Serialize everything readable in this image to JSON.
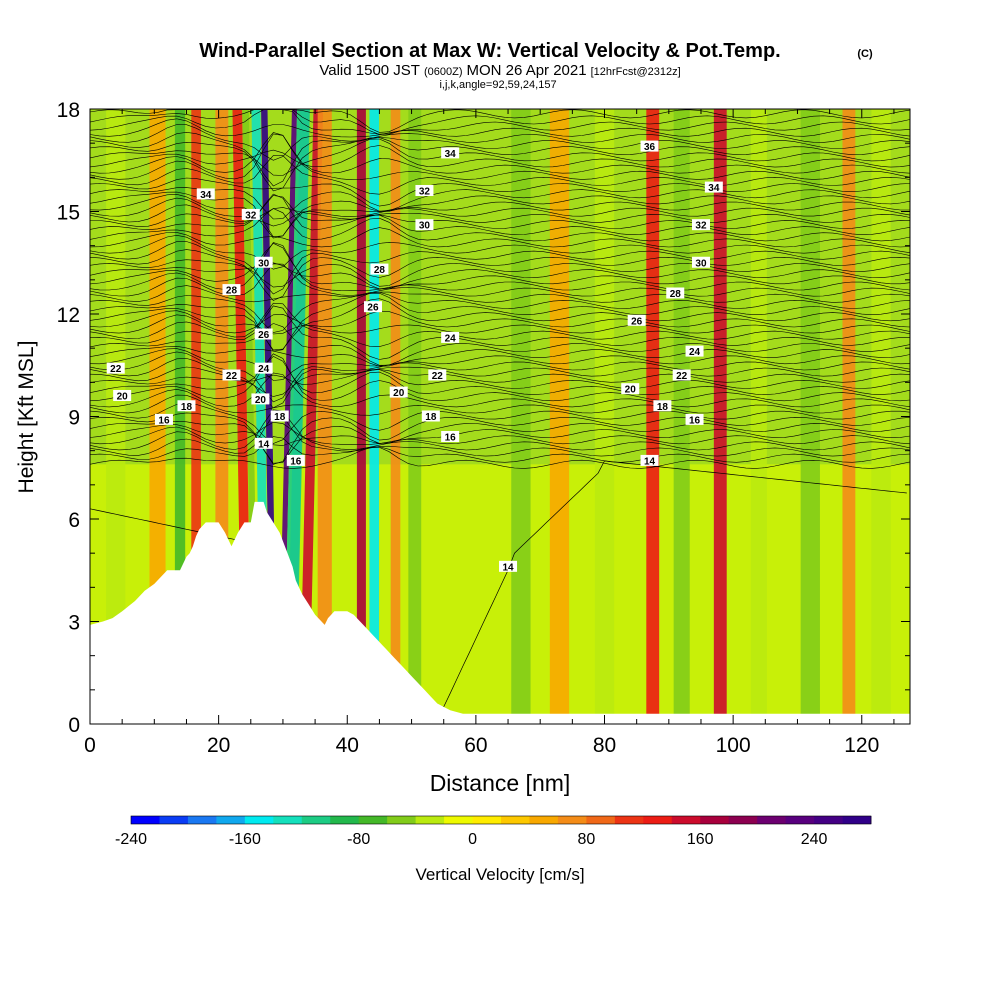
{
  "header": {
    "title_main": "Wind-Parallel Section at Max W: Vertical Velocity & Pot.Temp.",
    "title_c": "(C)",
    "subtitle_a": "Valid 1500 JST",
    "subtitle_b": "(0600Z)",
    "subtitle_c": "MON 26 Apr 2021",
    "subtitle_d": "[12hrFcst@2312z]",
    "subtitle_2": "i,j,k,angle=92,59,24,157"
  },
  "chart_data": {
    "type": "heatmap",
    "title": "Wind-Parallel Section at Max W: Vertical Velocity & Pot.Temp.",
    "xlabel": "Distance [nm]",
    "ylabel": "Height [Kft MSL]",
    "xlim": [
      0,
      127.5
    ],
    "ylim": [
      0,
      18
    ],
    "x_ticks": [
      0,
      20,
      40,
      60,
      80,
      100,
      120
    ],
    "y_ticks": [
      0,
      3,
      6,
      9,
      12,
      15,
      18
    ],
    "colorbar": {
      "label": "Vertical Velocity [cm/s]",
      "min": -240,
      "max": 280,
      "step": 20,
      "tick_values": [
        -240,
        -160,
        -80,
        0,
        80,
        160,
        240
      ],
      "colors": [
        "#0000ff",
        "#0a3cf5",
        "#1a78f2",
        "#10a8ee",
        "#00eaf0",
        "#14e0bc",
        "#1ccc84",
        "#22b84c",
        "#44b828",
        "#82cc1a",
        "#baea10",
        "#eefa00",
        "#ffec00",
        "#fdc800",
        "#f8a800",
        "#f48c18",
        "#f06818",
        "#ec3414",
        "#ec1c14",
        "#cc0c2c",
        "#a8003c",
        "#8c0050",
        "#6c0070",
        "#58007e",
        "#440084",
        "#300088"
      ]
    },
    "series": [
      {
        "field": "theta_contours",
        "labels": [
          {
            "x": 18,
            "y": 15.5,
            "v": "34"
          },
          {
            "x": 25,
            "y": 14.9,
            "v": "32"
          },
          {
            "x": 27,
            "y": 13.5,
            "v": "30"
          },
          {
            "x": 22,
            "y": 12.7,
            "v": "28"
          },
          {
            "x": 27,
            "y": 11.4,
            "v": "26"
          },
          {
            "x": 27,
            "y": 10.4,
            "v": "24"
          },
          {
            "x": 22,
            "y": 10.2,
            "v": "22"
          },
          {
            "x": 26.5,
            "y": 9.5,
            "v": "20"
          },
          {
            "x": 4,
            "y": 10.4,
            "v": "22"
          },
          {
            "x": 5,
            "y": 9.6,
            "v": "20"
          },
          {
            "x": 15,
            "y": 9.3,
            "v": "18"
          },
          {
            "x": 11.5,
            "y": 8.9,
            "v": "16"
          },
          {
            "x": 29.5,
            "y": 9.0,
            "v": "18"
          },
          {
            "x": 27,
            "y": 8.2,
            "v": "14"
          },
          {
            "x": 32,
            "y": 7.7,
            "v": "16"
          },
          {
            "x": 56,
            "y": 16.7,
            "v": "34"
          },
          {
            "x": 52,
            "y": 15.6,
            "v": "32"
          },
          {
            "x": 52,
            "y": 14.6,
            "v": "30"
          },
          {
            "x": 45,
            "y": 13.3,
            "v": "28"
          },
          {
            "x": 44,
            "y": 12.2,
            "v": "26"
          },
          {
            "x": 56,
            "y": 11.3,
            "v": "24"
          },
          {
            "x": 54,
            "y": 10.2,
            "v": "22"
          },
          {
            "x": 48,
            "y": 9.7,
            "v": "20"
          },
          {
            "x": 53,
            "y": 9.0,
            "v": "18"
          },
          {
            "x": 56,
            "y": 8.4,
            "v": "16"
          },
          {
            "x": 87,
            "y": 16.9,
            "v": "36"
          },
          {
            "x": 97,
            "y": 15.7,
            "v": "34"
          },
          {
            "x": 95,
            "y": 14.6,
            "v": "32"
          },
          {
            "x": 95,
            "y": 13.5,
            "v": "30"
          },
          {
            "x": 91,
            "y": 12.6,
            "v": "28"
          },
          {
            "x": 85,
            "y": 11.8,
            "v": "26"
          },
          {
            "x": 94,
            "y": 10.9,
            "v": "24"
          },
          {
            "x": 92,
            "y": 10.2,
            "v": "22"
          },
          {
            "x": 84,
            "y": 9.8,
            "v": "20"
          },
          {
            "x": 89,
            "y": 9.3,
            "v": "18"
          },
          {
            "x": 94,
            "y": 8.9,
            "v": "16"
          },
          {
            "x": 87,
            "y": 7.7,
            "v": "14"
          },
          {
            "x": 65,
            "y": 4.6,
            "v": "14"
          }
        ]
      },
      {
        "field": "vertical_velocity_bands_cm_s",
        "bands": [
          {
            "x": 28.6,
            "w": 1.0,
            "v": 280
          },
          {
            "x": 29.6,
            "w": 0.8,
            "v": 220
          },
          {
            "x": 27.3,
            "w": 1.4,
            "v": -140
          },
          {
            "x": 31.2,
            "w": 1.4,
            "v": -180
          },
          {
            "x": 31.0,
            "w": 2.0,
            "v": -120
          },
          {
            "x": 25.7,
            "w": 1.0,
            "v": -60
          },
          {
            "x": 33.3,
            "w": 1.5,
            "v": 140
          },
          {
            "x": 36.5,
            "w": 2.2,
            "v": 60
          },
          {
            "x": 24.4,
            "w": 1.5,
            "v": 120
          },
          {
            "x": 20.5,
            "w": 2.0,
            "v": 60
          },
          {
            "x": 42.2,
            "w": 1.4,
            "v": 160
          },
          {
            "x": 44.2,
            "w": 1.5,
            "v": -160
          },
          {
            "x": 47.5,
            "w": 1.5,
            "v": 60
          },
          {
            "x": 50.5,
            "w": 2.0,
            "v": -60
          },
          {
            "x": 14.0,
            "w": 1.6,
            "v": -80
          },
          {
            "x": 16.5,
            "w": 1.5,
            "v": 100
          },
          {
            "x": 10.5,
            "w": 2.5,
            "v": 40
          },
          {
            "x": 4.0,
            "w": 3.0,
            "v": -40
          },
          {
            "x": 67.0,
            "w": 3.0,
            "v": -60
          },
          {
            "x": 73.0,
            "w": 3.0,
            "v": 40
          },
          {
            "x": 80.0,
            "w": 3.0,
            "v": -40
          },
          {
            "x": 87.5,
            "w": 2.0,
            "v": 120
          },
          {
            "x": 92.0,
            "w": 2.5,
            "v": -60
          },
          {
            "x": 98.0,
            "w": 2.0,
            "v": 140
          },
          {
            "x": 104.0,
            "w": 2.5,
            "v": -40
          },
          {
            "x": 112.0,
            "w": 3.0,
            "v": -60
          },
          {
            "x": 118.0,
            "w": 2.0,
            "v": 60
          },
          {
            "x": 123.0,
            "w": 3.0,
            "v": -40
          }
        ]
      },
      {
        "field": "terrain_kft",
        "x": [
          0,
          2,
          3.5,
          5,
          7,
          8.5,
          10,
          12,
          14,
          15,
          15.5,
          16,
          16.5,
          17,
          18,
          19,
          20,
          21,
          22,
          23,
          24,
          25,
          25.6,
          27,
          27.5,
          28.5,
          29.5,
          30.5,
          31.5,
          32,
          33,
          34,
          35,
          36,
          36.5,
          37,
          38,
          39,
          40,
          41,
          42,
          43,
          44,
          45,
          46,
          47,
          48,
          49,
          50,
          51,
          52,
          53,
          54,
          55,
          56,
          57,
          58,
          127.5
        ],
        "y": [
          2.9,
          3.0,
          3.1,
          3.3,
          3.6,
          3.9,
          4.1,
          4.5,
          4.5,
          4.9,
          5.0,
          5.2,
          5.5,
          5.7,
          5.9,
          5.9,
          5.9,
          5.6,
          5.2,
          5.6,
          5.9,
          5.9,
          6.5,
          6.5,
          6.2,
          5.9,
          5.6,
          5.1,
          4.6,
          4.2,
          3.8,
          3.5,
          3.2,
          3.0,
          2.9,
          3.1,
          3.3,
          3.3,
          3.3,
          3.2,
          3.0,
          2.8,
          2.6,
          2.4,
          2.2,
          2.0,
          1.8,
          1.6,
          1.4,
          1.2,
          1.0,
          0.8,
          0.6,
          0.5,
          0.4,
          0.35,
          0.3,
          0.3
        ]
      }
    ]
  }
}
